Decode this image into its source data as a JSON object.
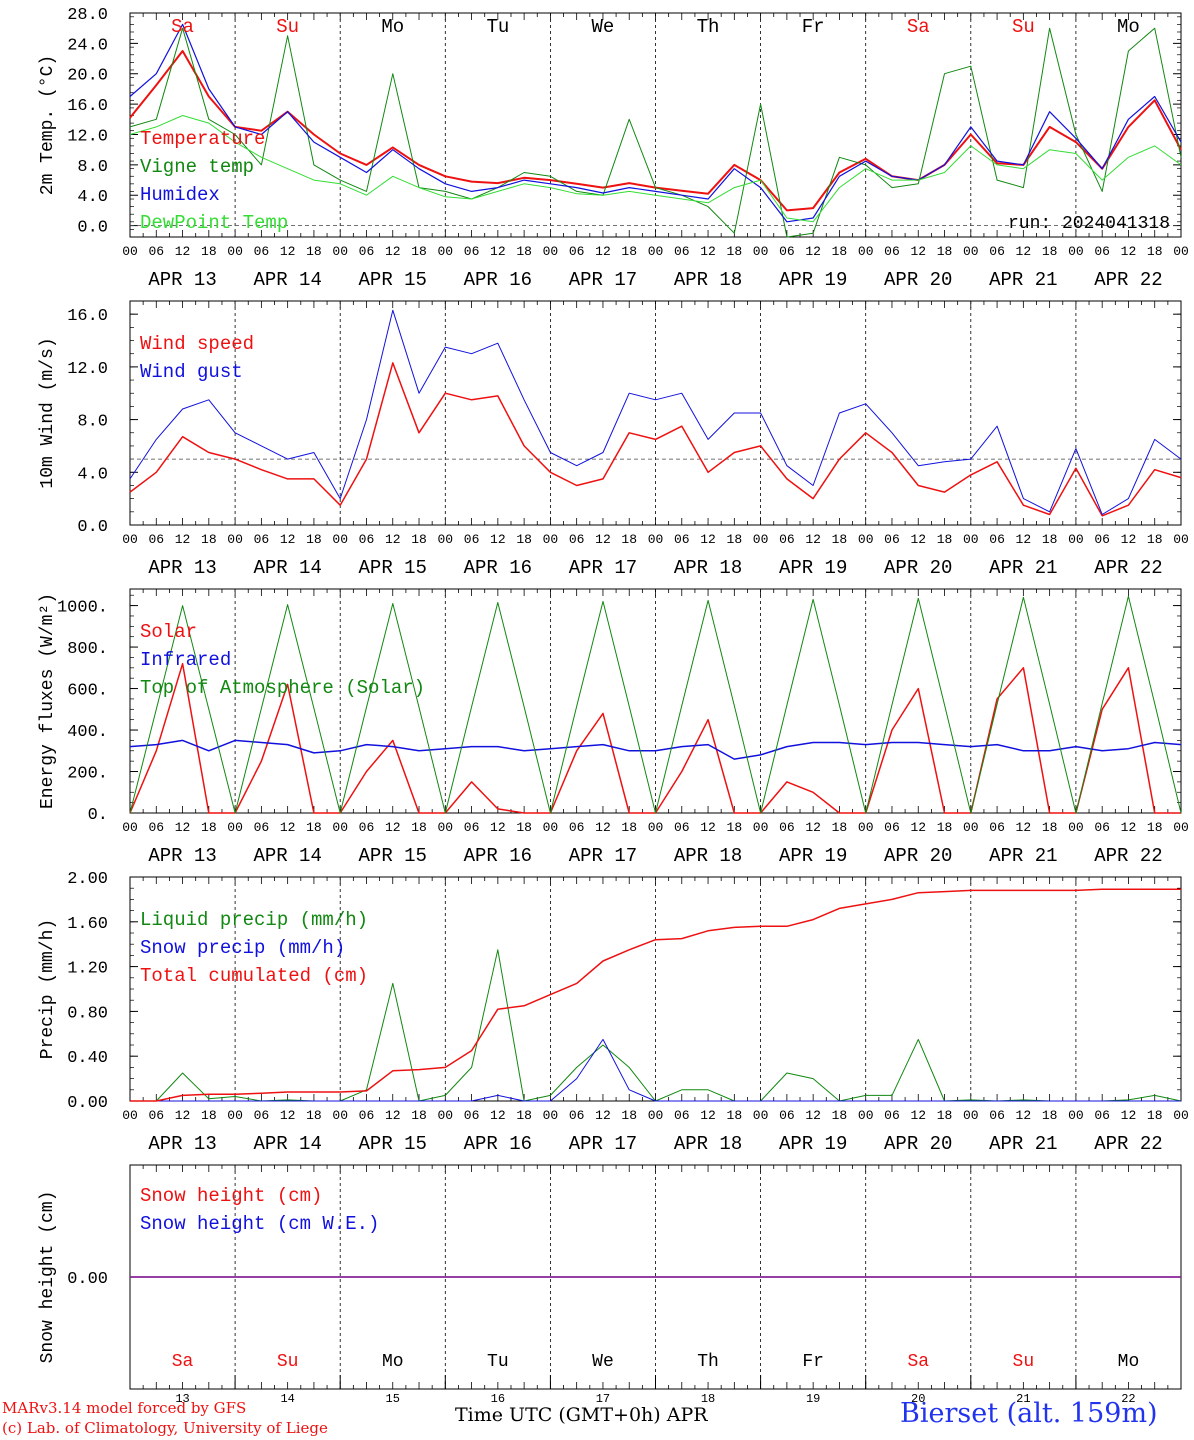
{
  "run_label": "run: 2024041318",
  "footer": {
    "credit_line1": "MARv3.14 model forced by GFS",
    "credit_line2": "(c) Lab. of Climatology, University of Liege",
    "xlabel": "Time UTC (GMT+0h) APR",
    "station": "Bierset (alt. 159m)"
  },
  "colors": {
    "red": "#ee1111",
    "green": "#118811",
    "blue": "#1111dd",
    "lightgreen": "#33dd33",
    "purple": "#882299"
  },
  "days": {
    "abbr": [
      "Sa",
      "Su",
      "Mo",
      "Tu",
      "We",
      "Th",
      "Fr",
      "Sa",
      "Su",
      "Mo"
    ],
    "weekend": [
      true,
      true,
      false,
      false,
      false,
      false,
      false,
      true,
      true,
      false
    ],
    "date_labels": [
      "APR 13",
      "APR 14",
      "APR 15",
      "APR 16",
      "APR 17",
      "APR 18",
      "APR 19",
      "APR 20",
      "APR 21",
      "APR 22"
    ],
    "day_numbers": [
      "13",
      "14",
      "15",
      "16",
      "17",
      "18",
      "19",
      "20",
      "21",
      "22"
    ],
    "hour_ticks": [
      "00",
      "06",
      "12",
      "18"
    ],
    "final_tick": "00"
  },
  "chart_data": [
    {
      "type": "line",
      "ylabel": "2m Temp. (°C)",
      "ylim": [
        -1.5,
        28
      ],
      "yticks": [
        "0.0",
        "4.0",
        "8.0",
        "12.0",
        "16.0",
        "20.0",
        "24.0",
        "28.0"
      ],
      "ref_line": 0,
      "step_hours": 6,
      "series": [
        {
          "name": "Temperature",
          "color": "red",
          "width": 2,
          "values": [
            14.2,
            18.5,
            23.0,
            17.0,
            13.0,
            12.5,
            15.0,
            12.0,
            9.5,
            8.0,
            10.3,
            8.0,
            6.5,
            5.8,
            5.6,
            6.3,
            6.0,
            5.5,
            5.0,
            5.6,
            5.0,
            4.6,
            4.2,
            8.0,
            6.0,
            2.0,
            2.3,
            7.0,
            8.8,
            6.5,
            6.0,
            8.0,
            12.0,
            8.2,
            8.0,
            13.0,
            11.0,
            7.5,
            13.0,
            16.5,
            10.0
          ]
        },
        {
          "name": "Vigne temp",
          "color": "green",
          "width": 1,
          "values": [
            13.0,
            14.0,
            26.0,
            14.0,
            12.0,
            8.0,
            25.0,
            8.0,
            6.0,
            4.5,
            20.0,
            5.0,
            4.5,
            3.5,
            5.0,
            7.0,
            6.5,
            4.5,
            4.0,
            14.0,
            5.0,
            4.0,
            2.5,
            -1.0,
            16.0,
            -1.5,
            -1.0,
            9.0,
            8.0,
            5.0,
            5.5,
            20.0,
            21.0,
            6.0,
            5.0,
            26.0,
            12.0,
            4.5,
            23.0,
            26.0,
            9.0
          ]
        },
        {
          "name": "Humidex",
          "color": "blue",
          "width": 1.2,
          "values": [
            17.0,
            20.0,
            26.5,
            18.0,
            13.0,
            12.0,
            15.0,
            11.0,
            9.0,
            7.0,
            10.0,
            7.5,
            5.5,
            4.5,
            5.0,
            6.0,
            5.5,
            5.0,
            4.3,
            5.0,
            4.5,
            4.0,
            3.5,
            7.5,
            5.0,
            0.5,
            1.0,
            6.5,
            8.5,
            6.5,
            6.0,
            8.0,
            13.0,
            8.5,
            8.0,
            15.0,
            11.5,
            7.5,
            14.0,
            17.0,
            11.0
          ]
        },
        {
          "name": "DewPoint Temp",
          "color": "lightgreen",
          "width": 1,
          "values": [
            12.0,
            13.0,
            14.5,
            13.5,
            11.0,
            9.0,
            7.5,
            6.0,
            5.5,
            4.0,
            6.5,
            5.0,
            3.8,
            3.5,
            4.5,
            5.5,
            5.0,
            4.2,
            4.0,
            4.5,
            4.0,
            3.5,
            3.0,
            5.0,
            6.0,
            1.0,
            0.5,
            5.0,
            7.5,
            6.0,
            6.0,
            7.0,
            10.5,
            8.0,
            7.5,
            10.0,
            9.5,
            6.0,
            9.0,
            10.5,
            8.0
          ]
        }
      ]
    },
    {
      "type": "line",
      "ylabel": "10m Wind (m/s)",
      "ylim": [
        0,
        17
      ],
      "yticks": [
        "0.0",
        "4.0",
        "8.0",
        "12.0",
        "16.0"
      ],
      "ref_line": 5,
      "step_hours": 6,
      "series": [
        {
          "name": "Wind speed",
          "color": "red",
          "width": 1.5,
          "values": [
            2.5,
            4.0,
            6.7,
            5.5,
            5.0,
            4.2,
            3.5,
            3.5,
            1.5,
            5.0,
            12.3,
            7.0,
            10.0,
            9.5,
            9.8,
            6.0,
            4.0,
            3.0,
            3.5,
            7.0,
            6.5,
            7.5,
            4.0,
            5.5,
            6.0,
            3.5,
            2.0,
            5.0,
            7.0,
            5.5,
            3.0,
            2.5,
            3.8,
            4.8,
            1.5,
            0.8,
            4.3,
            0.7,
            1.5,
            4.2,
            3.6
          ]
        },
        {
          "name": "Wind gust",
          "color": "blue",
          "width": 1,
          "values": [
            3.5,
            6.5,
            8.8,
            9.5,
            7.0,
            6.0,
            5.0,
            5.5,
            2.0,
            8.0,
            16.3,
            10.0,
            13.5,
            13.0,
            13.8,
            9.5,
            5.5,
            4.5,
            5.5,
            10.0,
            9.5,
            10.0,
            6.5,
            8.5,
            8.5,
            4.5,
            3.0,
            8.5,
            9.2,
            7.0,
            4.5,
            4.8,
            5.0,
            7.5,
            2.0,
            1.0,
            5.8,
            0.8,
            2.0,
            6.5,
            5.0
          ]
        }
      ]
    },
    {
      "type": "line",
      "ylabel": "Energy fluxes (W/m²)",
      "ylim": [
        0,
        1080
      ],
      "yticks": [
        "0.",
        "200.",
        "400.",
        "600.",
        "800.",
        "1000."
      ],
      "step_hours": 6,
      "series": [
        {
          "name": "Solar",
          "color": "red",
          "width": 1.5,
          "values": [
            0,
            300,
            720,
            0,
            0,
            250,
            620,
            0,
            0,
            200,
            350,
            0,
            0,
            150,
            20,
            0,
            0,
            300,
            480,
            0,
            0,
            200,
            450,
            0,
            0,
            150,
            100,
            0,
            0,
            400,
            600,
            0,
            0,
            550,
            700,
            0,
            0,
            500,
            700,
            0,
            0
          ]
        },
        {
          "name": "Infrared",
          "color": "blue",
          "width": 1.5,
          "values": [
            320,
            330,
            350,
            300,
            350,
            340,
            330,
            290,
            300,
            330,
            320,
            300,
            310,
            320,
            320,
            300,
            310,
            320,
            330,
            300,
            300,
            320,
            330,
            260,
            280,
            320,
            340,
            340,
            330,
            340,
            340,
            330,
            320,
            330,
            300,
            300,
            320,
            300,
            310,
            340,
            330
          ]
        },
        {
          "name": "Top of Atmosphere (Solar)",
          "color": "green",
          "width": 1,
          "values": [
            0,
            500,
            1000,
            500,
            0,
            505,
            1005,
            505,
            0,
            510,
            1010,
            510,
            0,
            512,
            1015,
            512,
            0,
            515,
            1020,
            515,
            0,
            518,
            1025,
            518,
            0,
            520,
            1030,
            520,
            0,
            522,
            1035,
            522,
            0,
            525,
            1040,
            525,
            0,
            528,
            1045,
            528,
            0
          ]
        }
      ]
    },
    {
      "type": "line",
      "ylabel": "Precip (mm/h)",
      "ylim": [
        0,
        2.0
      ],
      "yticks": [
        "0.00",
        "0.40",
        "0.80",
        "1.20",
        "1.60",
        "2.00"
      ],
      "step_hours": 6,
      "series": [
        {
          "name": "Liquid precip (mm/h)",
          "color": "green",
          "width": 1,
          "values": [
            0,
            0,
            0.25,
            0.02,
            0.04,
            0.0,
            0.01,
            0.0,
            0.0,
            0.1,
            1.05,
            0.0,
            0.05,
            0.3,
            1.35,
            0.0,
            0.05,
            0.3,
            0.5,
            0.3,
            0.0,
            0.1,
            0.1,
            0.0,
            0.0,
            0.25,
            0.2,
            0.0,
            0.05,
            0.05,
            0.55,
            0.0,
            0.01,
            0.0,
            0.01,
            0.0,
            0.0,
            0.0,
            0.01,
            0.05,
            0.0
          ]
        },
        {
          "name": "Snow precip (mm/h)",
          "color": "blue",
          "width": 1,
          "values": [
            0,
            0,
            0,
            0,
            0,
            0,
            0,
            0,
            0,
            0,
            0,
            0,
            0,
            0,
            0.05,
            0,
            0,
            0.2,
            0.55,
            0.1,
            0,
            0,
            0,
            0,
            0,
            0,
            0,
            0,
            0,
            0,
            0,
            0,
            0,
            0,
            0,
            0,
            0,
            0,
            0,
            0,
            0
          ]
        },
        {
          "name": "Total cumulated (cm)",
          "color": "red",
          "width": 1.5,
          "values": [
            0,
            0,
            0.05,
            0.06,
            0.06,
            0.07,
            0.08,
            0.08,
            0.08,
            0.09,
            0.27,
            0.28,
            0.3,
            0.45,
            0.82,
            0.85,
            0.95,
            1.05,
            1.25,
            1.35,
            1.44,
            1.45,
            1.52,
            1.55,
            1.56,
            1.56,
            1.62,
            1.72,
            1.76,
            1.8,
            1.86,
            1.87,
            1.88,
            1.88,
            1.88,
            1.88,
            1.88,
            1.89,
            1.89,
            1.89,
            1.89
          ]
        }
      ]
    },
    {
      "type": "line",
      "ylabel": "Snow height (cm)",
      "ylim": [
        -1,
        1
      ],
      "yticks": [
        "0.00"
      ],
      "step_hours": 6,
      "series": [
        {
          "name": "Snow height (cm)",
          "color": "red",
          "width": 1.5,
          "values": [
            0,
            0,
            0,
            0,
            0,
            0,
            0,
            0,
            0,
            0,
            0,
            0,
            0,
            0,
            0,
            0,
            0,
            0,
            0,
            0,
            0,
            0,
            0,
            0,
            0,
            0,
            0,
            0,
            0,
            0,
            0,
            0,
            0,
            0,
            0,
            0,
            0,
            0,
            0,
            0,
            0
          ]
        },
        {
          "name": "Snow height (cm W.E.)",
          "color": "blue",
          "width": 1.5,
          "values": [
            0,
            0,
            0,
            0,
            0,
            0,
            0,
            0,
            0,
            0,
            0,
            0,
            0,
            0,
            0,
            0,
            0,
            0,
            0,
            0,
            0,
            0,
            0,
            0,
            0,
            0,
            0,
            0,
            0,
            0,
            0,
            0,
            0,
            0,
            0,
            0,
            0,
            0,
            0,
            0,
            0
          ]
        }
      ]
    }
  ]
}
